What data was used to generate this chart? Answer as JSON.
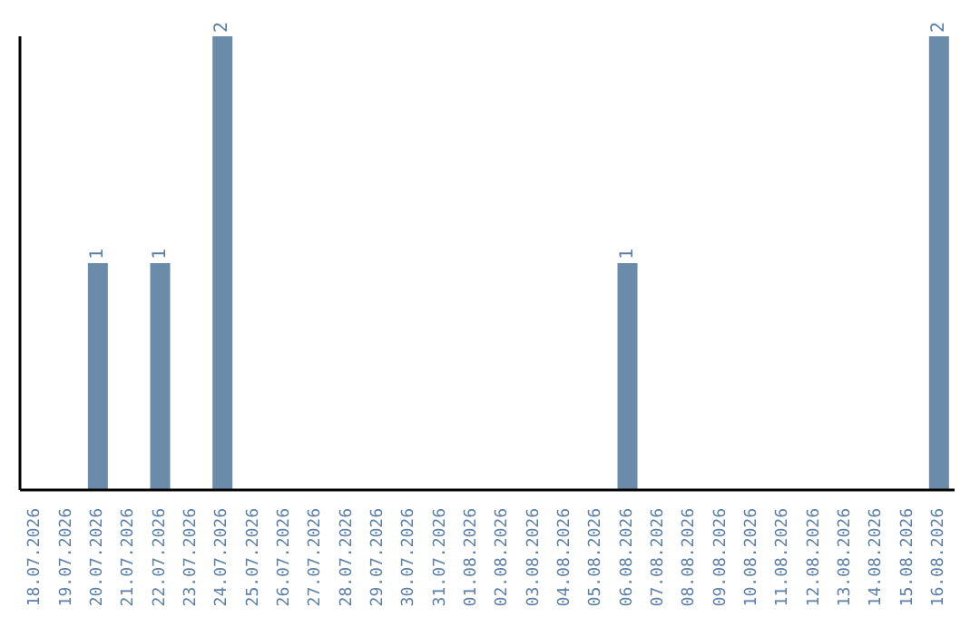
{
  "chart_data": {
    "type": "bar",
    "categories": [
      "18.07.2026",
      "19.07.2026",
      "20.07.2026",
      "21.07.2026",
      "22.07.2026",
      "23.07.2026",
      "24.07.2026",
      "25.07.2026",
      "26.07.2026",
      "27.07.2026",
      "28.07.2026",
      "29.07.2026",
      "30.07.2026",
      "31.07.2026",
      "01.08.2026",
      "02.08.2026",
      "03.08.2026",
      "04.08.2026",
      "05.08.2026",
      "06.08.2026",
      "07.08.2026",
      "08.08.2026",
      "09.08.2026",
      "10.08.2026",
      "11.08.2026",
      "12.08.2026",
      "13.08.2026",
      "14.08.2026",
      "15.08.2026",
      "16.08.2026"
    ],
    "values": [
      0,
      0,
      1,
      0,
      1,
      0,
      2,
      0,
      0,
      0,
      0,
      0,
      0,
      0,
      0,
      0,
      0,
      0,
      0,
      1,
      0,
      0,
      0,
      0,
      0,
      0,
      0,
      0,
      0,
      2
    ],
    "value_labels": [
      null,
      null,
      "1",
      null,
      "1",
      null,
      "2",
      null,
      null,
      null,
      null,
      null,
      null,
      null,
      null,
      null,
      null,
      null,
      null,
      "1",
      null,
      null,
      null,
      null,
      null,
      null,
      null,
      null,
      null,
      "2"
    ],
    "color": "#6a8caa",
    "tick_labels": "x",
    "grid": false,
    "legend": false
  }
}
